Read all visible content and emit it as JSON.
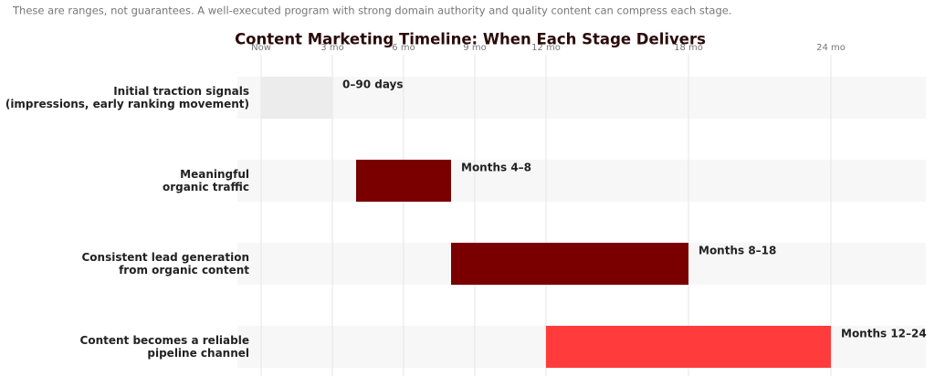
{
  "chart_data": {
    "type": "range-bar",
    "note": "These are ranges, not guarantees. A well-executed program with strong domain authority and quality content can compress each stage.",
    "title": "Content Marketing Timeline: When Each Stage Delivers",
    "categories": [
      "Initial traction signals\n(impressions, early ranking movement)",
      "Meaningful\norganic traffic",
      "Consistent lead generation\nfrom organic content",
      "Content becomes a reliable\npipeline channel"
    ],
    "start": [
      0,
      4,
      8,
      12
    ],
    "end": [
      3,
      8,
      18,
      24
    ],
    "bar_labels": [
      "0–90 days",
      "Months 4–8",
      "Months 8–18",
      "Months 12–24"
    ],
    "colors": [
      "#ececec",
      "#7a0000",
      "#7a0000",
      "#ff3b3b"
    ],
    "xlim": [
      -1,
      28
    ],
    "xticks": [
      {
        "value": 0,
        "label": "Now"
      },
      {
        "value": 3,
        "label": "3 mo"
      },
      {
        "value": 6,
        "label": "6 mo"
      },
      {
        "value": 9,
        "label": "9 mo"
      },
      {
        "value": 12,
        "label": "12 mo"
      },
      {
        "value": 18,
        "label": "18 mo"
      },
      {
        "value": 24,
        "label": "24 mo"
      }
    ],
    "grid": true
  }
}
